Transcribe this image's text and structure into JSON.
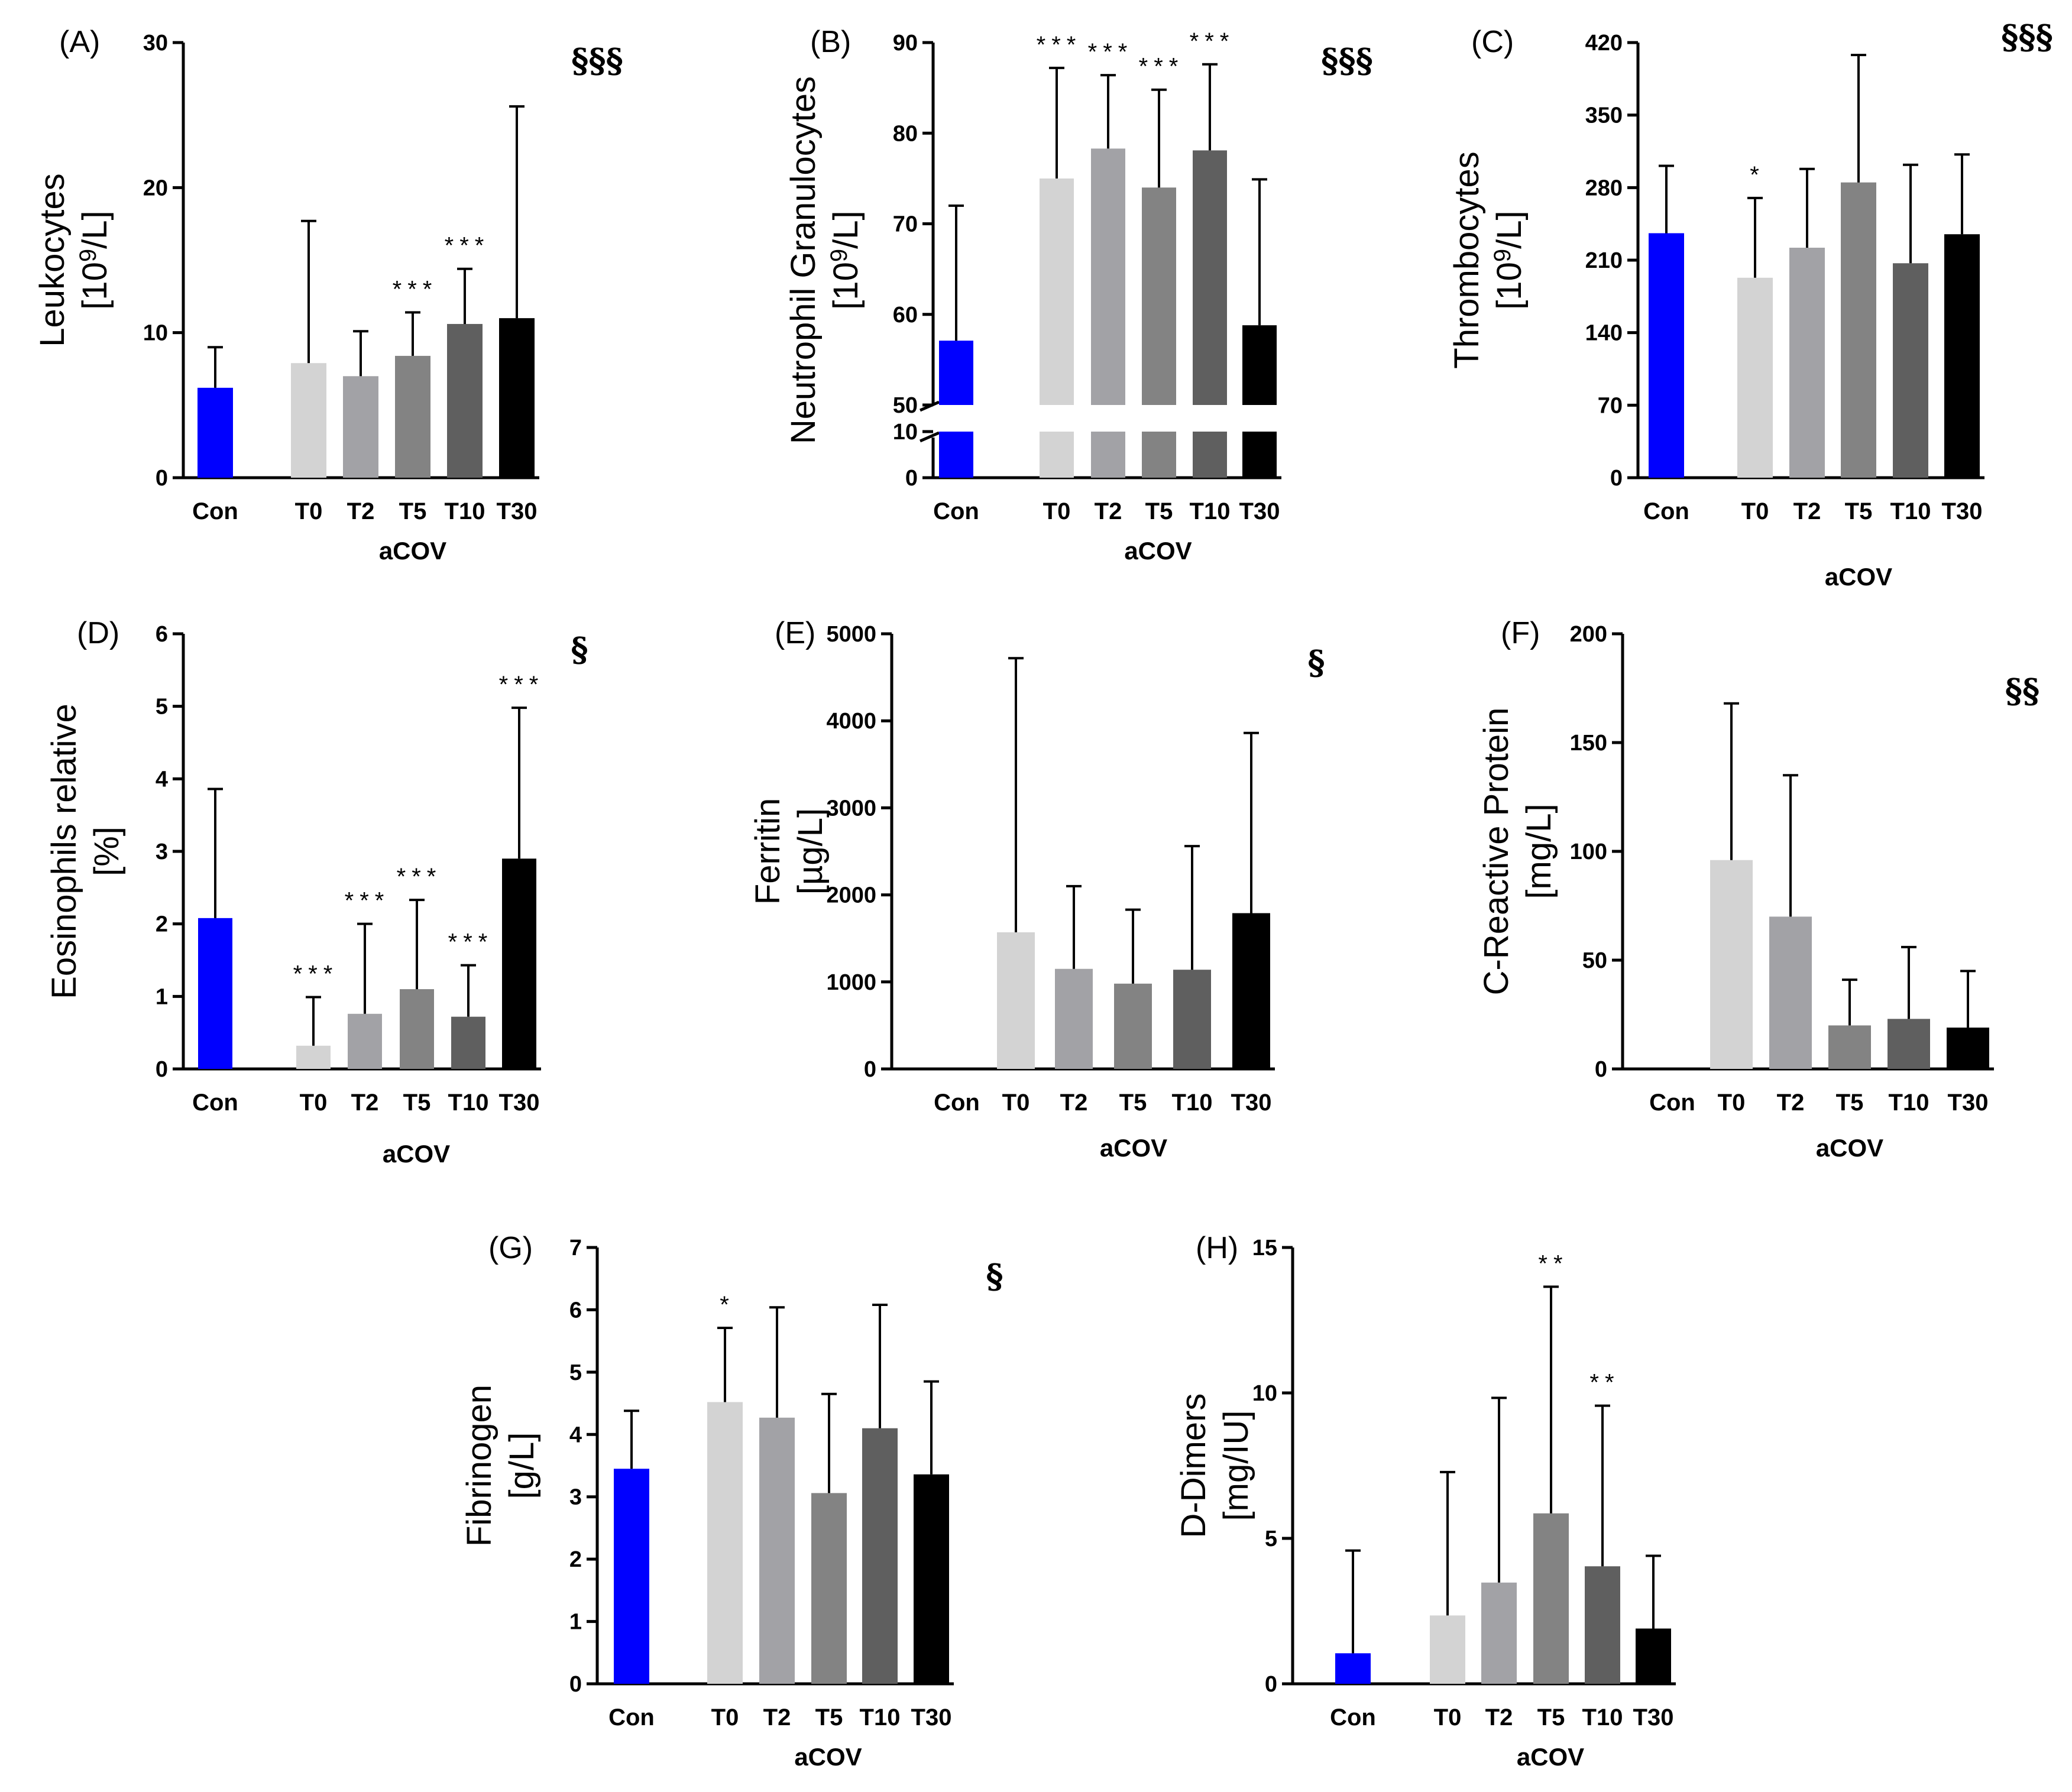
{
  "colors": {
    "Con": "#0000ff",
    "T0": "#d3d3d3",
    "T2": "#a2a2a6",
    "T5": "#838383",
    "T10": "#5f5f5f",
    "T30": "#000000",
    "axis": "#000000"
  },
  "chart_data": [
    {
      "panel": "(A)",
      "type": "bar",
      "ylabel": [
        "Leukocytes",
        "[10^9/L]"
      ],
      "xlabel": "aCOV",
      "categories": [
        "Con",
        "T0",
        "T2",
        "T5",
        "T10",
        "T30"
      ],
      "values": [
        6.2,
        7.9,
        7.0,
        8.4,
        10.6,
        11.0
      ],
      "error_upper": [
        9.0,
        17.7,
        10.1,
        11.4,
        14.4,
        25.6
      ],
      "significance": [
        "",
        "",
        "",
        "***",
        "***",
        ""
      ],
      "group_significance": "§§§",
      "ylim": [
        0,
        30
      ],
      "yticks": [
        0,
        10,
        20,
        30
      ]
    },
    {
      "panel": "(B)",
      "type": "bar",
      "ylabel": [
        "Neutrophil Granulocytes",
        "[10^9/L]"
      ],
      "xlabel": "aCOV",
      "categories": [
        "Con",
        "T0",
        "T2",
        "T5",
        "T10",
        "T30"
      ],
      "values": [
        57.1,
        75.0,
        78.3,
        74.0,
        78.1,
        58.8
      ],
      "error_upper": [
        72.0,
        87.2,
        86.4,
        84.8,
        87.6,
        74.9
      ],
      "significance": [
        "",
        "***",
        "***",
        "***",
        "***",
        ""
      ],
      "group_significance": "§§§",
      "yaxis_break": true,
      "ylim_lower": [
        0,
        10
      ],
      "ylim_upper": [
        50,
        90
      ],
      "yticks": [
        0,
        10,
        50,
        60,
        70,
        80,
        90
      ]
    },
    {
      "panel": "(C)",
      "type": "bar",
      "ylabel": [
        "Thrombocytes",
        "[10^9/L]"
      ],
      "xlabel": "aCOV",
      "categories": [
        "Con",
        "T0",
        "T2",
        "T5",
        "T10",
        "T30"
      ],
      "values": [
        236,
        193,
        222,
        285,
        207,
        235
      ],
      "error_upper": [
        301,
        270,
        298,
        408,
        302,
        312
      ],
      "significance": [
        "",
        "*",
        "",
        "",
        "",
        ""
      ],
      "group_significance": "§§§",
      "ylim": [
        0,
        420
      ],
      "yticks": [
        0,
        70,
        140,
        210,
        280,
        350,
        420
      ]
    },
    {
      "panel": "(D)",
      "type": "bar",
      "ylabel": [
        "Eosinophils relative",
        "[%]"
      ],
      "xlabel": "aCOV",
      "categories": [
        "Con",
        "T0",
        "T2",
        "T5",
        "T10",
        "T30"
      ],
      "values": [
        2.08,
        0.32,
        0.76,
        1.1,
        0.72,
        2.9
      ],
      "error_upper": [
        3.86,
        0.99,
        2.0,
        2.33,
        1.43,
        4.98
      ],
      "significance": [
        "",
        "***",
        "***",
        "***",
        "***",
        "***"
      ],
      "group_significance": "§",
      "ylim": [
        0,
        6
      ],
      "yticks": [
        0,
        1,
        2,
        3,
        4,
        5,
        6
      ]
    },
    {
      "panel": "(E)",
      "type": "bar",
      "ylabel": [
        "Ferritin",
        "[µg/L]"
      ],
      "xlabel": "aCOV",
      "categories": [
        "Con",
        "T0",
        "T2",
        "T5",
        "T10",
        "T30"
      ],
      "values": [
        0,
        1570,
        1150,
        980,
        1140,
        1790
      ],
      "error_upper": [
        0,
        4720,
        2100,
        1830,
        2560,
        3860
      ],
      "significance": [
        "",
        "",
        "",
        "",
        "",
        ""
      ],
      "group_significance": "§",
      "ylim": [
        0,
        5000
      ],
      "yticks": [
        0,
        1000,
        2000,
        3000,
        4000,
        5000
      ]
    },
    {
      "panel": "(F)",
      "type": "bar",
      "ylabel": [
        "C-Reactive Protein",
        "[mg/L]"
      ],
      "xlabel": "aCOV",
      "categories": [
        "Con",
        "T0",
        "T2",
        "T5",
        "T10",
        "T30"
      ],
      "values": [
        0,
        96,
        70,
        20,
        23,
        19
      ],
      "error_upper": [
        0,
        168,
        135,
        41,
        56,
        45
      ],
      "significance": [
        "",
        "",
        "",
        "",
        "",
        ""
      ],
      "group_significance": "§§",
      "ylim": [
        0,
        200
      ],
      "yticks": [
        0,
        50,
        100,
        150,
        200
      ]
    },
    {
      "panel": "(G)",
      "type": "bar",
      "ylabel": [
        "Fibrinogen",
        "[g/L]"
      ],
      "xlabel": "aCOV",
      "categories": [
        "Con",
        "T0",
        "T2",
        "T5",
        "T10",
        "T30"
      ],
      "values": [
        3.45,
        4.52,
        4.27,
        3.06,
        4.1,
        3.36
      ],
      "error_upper": [
        4.38,
        5.71,
        6.04,
        4.65,
        6.08,
        4.85
      ],
      "significance": [
        "",
        "*",
        "",
        "",
        "",
        ""
      ],
      "group_significance": "§",
      "ylim": [
        0,
        7
      ],
      "yticks": [
        0,
        1,
        2,
        3,
        4,
        5,
        6,
        7
      ]
    },
    {
      "panel": "(H)",
      "type": "bar",
      "ylabel": [
        "D-Dimers",
        "[mg/IU]"
      ],
      "xlabel": "aCOV",
      "categories": [
        "Con",
        "T0",
        "T2",
        "T5",
        "T10",
        "T30"
      ],
      "values": [
        1.05,
        2.35,
        3.48,
        5.86,
        4.04,
        1.9
      ],
      "error_upper": [
        4.58,
        7.28,
        9.83,
        13.65,
        9.56,
        4.4
      ],
      "significance": [
        "",
        "",
        "",
        "**",
        "**",
        ""
      ],
      "group_significance": "",
      "ylim": [
        0,
        15
      ],
      "yticks": [
        0,
        5,
        10,
        15
      ]
    }
  ]
}
